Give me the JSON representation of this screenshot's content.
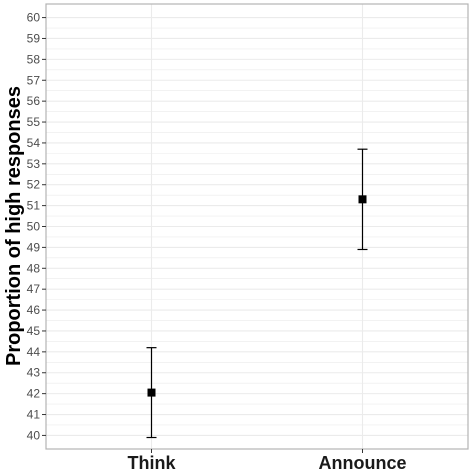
{
  "chart_data": {
    "type": "scatter",
    "title": "",
    "xlabel": "",
    "ylabel": "Proportion of high responses",
    "categories": [
      "Think",
      "Announce"
    ],
    "series": [
      {
        "values": [
          42.05,
          51.3
        ],
        "error_low": [
          39.9,
          48.9
        ],
        "error_high": [
          44.2,
          53.7
        ]
      }
    ],
    "ylim": [
      39.35,
      60.65
    ],
    "yticks": [
      40,
      41,
      42,
      43,
      44,
      45,
      46,
      47,
      48,
      49,
      50,
      51,
      52,
      53,
      54,
      55,
      56,
      57,
      58,
      59,
      60
    ],
    "grid": true,
    "legend": "none",
    "colors": {
      "point": "#000000",
      "errorbar": "#000000",
      "grid": "#ebebeb",
      "panel_border": "#b3b3b3"
    }
  }
}
